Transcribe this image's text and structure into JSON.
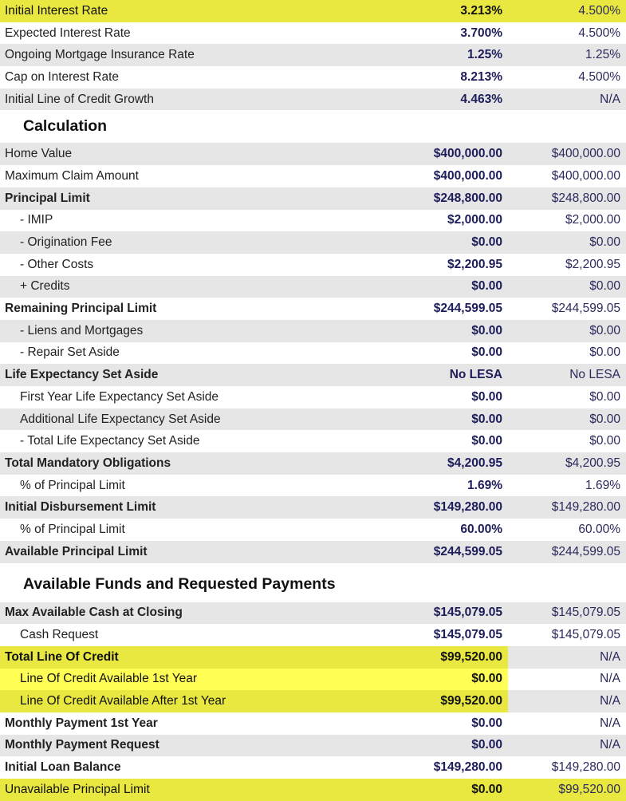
{
  "rates": [
    {
      "label": "Initial Interest Rate",
      "v1": "3.213%",
      "v2": "4.500%",
      "bold": false,
      "indent": false,
      "bg": "yellow"
    },
    {
      "label": "Expected Interest Rate",
      "v1": "3.700%",
      "v2": "4.500%",
      "bold": false,
      "indent": false,
      "bg": "white"
    },
    {
      "label": "Ongoing Mortgage Insurance Rate",
      "v1": "1.25%",
      "v2": "1.25%",
      "bold": false,
      "indent": false,
      "bg": "gray"
    },
    {
      "label": "Cap on Interest Rate",
      "v1": "8.213%",
      "v2": "4.500%",
      "bold": false,
      "indent": false,
      "bg": "white"
    },
    {
      "label": "Initial Line of Credit Growth",
      "v1": "4.463%",
      "v2": "N/A",
      "bold": false,
      "indent": false,
      "bg": "gray"
    }
  ],
  "calculation": {
    "title": "Calculation",
    "rows": [
      {
        "label": "Home Value",
        "v1": "$400,000.00",
        "v2": "$400,000.00",
        "bold": false,
        "indent": false,
        "bg": "gray"
      },
      {
        "label": "Maximum Claim Amount",
        "v1": "$400,000.00",
        "v2": "$400,000.00",
        "bold": false,
        "indent": false,
        "bg": "white"
      },
      {
        "label": "Principal Limit",
        "v1": "$248,800.00",
        "v2": "$248,800.00",
        "bold": true,
        "indent": false,
        "bg": "gray"
      },
      {
        "label": "- IMIP",
        "v1": "$2,000.00",
        "v2": "$2,000.00",
        "bold": false,
        "indent": true,
        "bg": "white"
      },
      {
        "label": "- Origination Fee",
        "v1": "$0.00",
        "v2": "$0.00",
        "bold": false,
        "indent": true,
        "bg": "gray"
      },
      {
        "label": "- Other Costs",
        "v1": "$2,200.95",
        "v2": "$2,200.95",
        "bold": false,
        "indent": true,
        "bg": "white"
      },
      {
        "label": "+ Credits",
        "v1": "$0.00",
        "v2": "$0.00",
        "bold": false,
        "indent": true,
        "bg": "gray"
      },
      {
        "label": "Remaining Principal Limit",
        "v1": "$244,599.05",
        "v2": "$244,599.05",
        "bold": true,
        "indent": false,
        "bg": "white"
      },
      {
        "label": "- Liens and Mortgages",
        "v1": "$0.00",
        "v2": "$0.00",
        "bold": false,
        "indent": true,
        "bg": "gray"
      },
      {
        "label": "- Repair Set Aside",
        "v1": "$0.00",
        "v2": "$0.00",
        "bold": false,
        "indent": true,
        "bg": "white"
      },
      {
        "label": "Life Expectancy Set Aside",
        "v1": "No LESA",
        "v2": "No LESA",
        "bold": true,
        "indent": false,
        "bg": "gray"
      },
      {
        "label": "First Year Life Expectancy Set Aside",
        "v1": "$0.00",
        "v2": "$0.00",
        "bold": false,
        "indent": true,
        "bg": "white"
      },
      {
        "label": "Additional Life Expectancy Set Aside",
        "v1": "$0.00",
        "v2": "$0.00",
        "bold": false,
        "indent": true,
        "bg": "gray"
      },
      {
        "label": "- Total Life Expectancy Set Aside",
        "v1": "$0.00",
        "v2": "$0.00",
        "bold": false,
        "indent": true,
        "bg": "white"
      },
      {
        "label": "Total Mandatory Obligations",
        "v1": "$4,200.95",
        "v2": "$4,200.95",
        "bold": true,
        "indent": false,
        "bg": "gray"
      },
      {
        "label": "% of Principal Limit",
        "v1": "1.69%",
        "v2": "1.69%",
        "bold": false,
        "indent": true,
        "bg": "white"
      },
      {
        "label": "Initial Disbursement Limit",
        "v1": "$149,280.00",
        "v2": "$149,280.00",
        "bold": true,
        "indent": false,
        "bg": "gray"
      },
      {
        "label": "% of Principal Limit",
        "v1": "60.00%",
        "v2": "60.00%",
        "bold": false,
        "indent": true,
        "bg": "white"
      },
      {
        "label": "Available Principal Limit",
        "v1": "$244,599.05",
        "v2": "$244,599.05",
        "bold": true,
        "indent": false,
        "bg": "gray"
      }
    ]
  },
  "funds": {
    "title": "Available Funds and Requested Payments",
    "rows": [
      {
        "label": "Max Available Cash at Closing",
        "v1": "$145,079.05",
        "v2": "$145,079.05",
        "bold": true,
        "indent": false,
        "bg": "gray"
      },
      {
        "label": "Cash Request",
        "v1": "$145,079.05",
        "v2": "$145,079.05",
        "bold": false,
        "indent": true,
        "bg": "white"
      },
      {
        "label": "Total Line Of Credit",
        "v1": "$99,520.00",
        "v2": "N/A",
        "bold": true,
        "indent": false,
        "bg": "gray",
        "partial": "a"
      },
      {
        "label": "Line Of Credit Available 1st Year",
        "v1": "$0.00",
        "v2": "N/A",
        "bold": false,
        "indent": true,
        "bg": "white",
        "partial": "b"
      },
      {
        "label": "Line Of Credit Available After 1st Year",
        "v1": "$99,520.00",
        "v2": "N/A",
        "bold": false,
        "indent": true,
        "bg": "gray",
        "partial": "a"
      },
      {
        "label": "Monthly Payment 1st Year",
        "v1": "$0.00",
        "v2": "N/A",
        "bold": true,
        "indent": false,
        "bg": "white"
      },
      {
        "label": "Monthly Payment Request",
        "v1": "$0.00",
        "v2": "N/A",
        "bold": true,
        "indent": false,
        "bg": "gray"
      },
      {
        "label": "Initial Loan Balance",
        "v1": "$149,280.00",
        "v2": "$149,280.00",
        "bold": true,
        "indent": false,
        "bg": "white"
      },
      {
        "label": "Unavailable Principal Limit",
        "v1": "$0.00",
        "v2": "$99,520.00",
        "bold": false,
        "indent": false,
        "bg": "yellow"
      }
    ]
  },
  "colors": {
    "highlight": "#e8e840",
    "highlight_bright": "#ffff55",
    "stripe": "#e6e6e6",
    "value_navy": "#1c1c5a"
  }
}
